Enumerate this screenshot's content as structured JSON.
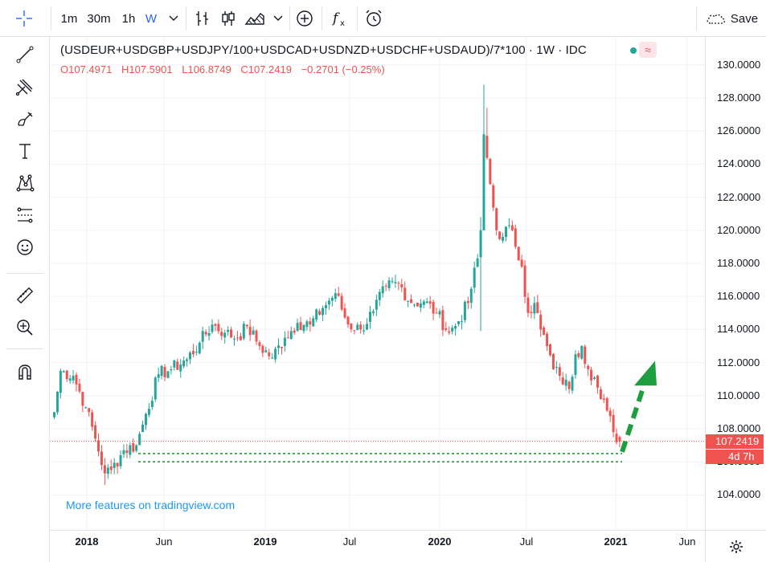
{
  "toolbar": {
    "intervals": [
      "1m",
      "30m",
      "1h",
      "W"
    ],
    "save_label": "Save"
  },
  "legend": {
    "title": "(USDEUR+USDGBP+USDJPY/100+USDCAD+USDNZD+USDCHF+USDAUD)/7*100 · 1W · IDC",
    "status_icon": "≈",
    "ohlc": {
      "o_label": "O",
      "o_value": "107.4971",
      "h_label": "H",
      "h_value": "107.5901",
      "l_label": "L",
      "l_value": "106.8749",
      "c_label": "C",
      "c_value": "107.2419",
      "change": "−0.2701 (−0.25%)"
    }
  },
  "watermark": "More features on tradingview.com",
  "price_axis": {
    "ticks": [
      "130.0000",
      "128.0000",
      "126.0000",
      "124.0000",
      "122.0000",
      "120.0000",
      "118.0000",
      "116.0000",
      "114.0000",
      "112.0000",
      "110.0000",
      "108.0000",
      "106.0000",
      "104.0000"
    ],
    "last_price": "107.2419",
    "countdown": "4d 7h"
  },
  "time_axis": [
    {
      "label": "2018",
      "bold": true
    },
    {
      "label": "Jun",
      "bold": false
    },
    {
      "label": "2019",
      "bold": true
    },
    {
      "label": "Jul",
      "bold": false
    },
    {
      "label": "2020",
      "bold": true
    },
    {
      "label": "Jul",
      "bold": false
    },
    {
      "label": "2021",
      "bold": true
    },
    {
      "label": "Jun",
      "bold": false
    }
  ],
  "chart_data": {
    "type": "candlestick",
    "symbol": "(USDEUR+USDGBP+USDJPY/100+USDCAD+USDNZD+USDCHF+USDAUD)/7*100",
    "interval": "1W",
    "source": "IDC",
    "ylim": [
      103,
      131
    ],
    "x_ticks": [
      "2018",
      "Jun",
      "2019",
      "Jul",
      "2020",
      "Jul",
      "2021",
      "Jun"
    ],
    "anchors": [
      {
        "w": 0,
        "v": 109.0
      },
      {
        "w": 2,
        "v": 111.5
      },
      {
        "w": 6,
        "v": 111.2
      },
      {
        "w": 10,
        "v": 109.3
      },
      {
        "w": 13,
        "v": 107.4
      },
      {
        "w": 16,
        "v": 105.3
      },
      {
        "w": 18,
        "v": 105.5
      },
      {
        "w": 22,
        "v": 106.7
      },
      {
        "w": 26,
        "v": 107.0
      },
      {
        "w": 29,
        "v": 108.9
      },
      {
        "w": 33,
        "v": 111.3
      },
      {
        "w": 37,
        "v": 111.6
      },
      {
        "w": 42,
        "v": 112.2
      },
      {
        "w": 46,
        "v": 113.2
      },
      {
        "w": 50,
        "v": 114.3
      },
      {
        "w": 54,
        "v": 113.8
      },
      {
        "w": 58,
        "v": 113.5
      },
      {
        "w": 61,
        "v": 114.2
      },
      {
        "w": 65,
        "v": 113.0
      },
      {
        "w": 69,
        "v": 112.3
      },
      {
        "w": 73,
        "v": 113.5
      },
      {
        "w": 77,
        "v": 114.4
      },
      {
        "w": 81,
        "v": 114.3
      },
      {
        "w": 85,
        "v": 115.3
      },
      {
        "w": 89,
        "v": 116.2
      },
      {
        "w": 93,
        "v": 114.3
      },
      {
        "w": 97,
        "v": 114.0
      },
      {
        "w": 101,
        "v": 115.1
      },
      {
        "w": 105,
        "v": 116.6
      },
      {
        "w": 109,
        "v": 116.8
      },
      {
        "w": 113,
        "v": 115.6
      },
      {
        "w": 117,
        "v": 115.7
      },
      {
        "w": 121,
        "v": 115.0
      },
      {
        "w": 125,
        "v": 113.8
      },
      {
        "w": 128,
        "v": 114.5
      },
      {
        "w": 131,
        "v": 115.6
      },
      {
        "w": 134,
        "v": 118.3
      },
      {
        "w": 135,
        "v": 120.0
      },
      {
        "w": 136,
        "v": 125.8
      },
      {
        "w": 138,
        "v": 122.8
      },
      {
        "w": 140,
        "v": 120.0
      },
      {
        "w": 142,
        "v": 119.6
      },
      {
        "w": 144,
        "v": 120.3
      },
      {
        "w": 146,
        "v": 119.0
      },
      {
        "w": 148,
        "v": 117.8
      },
      {
        "w": 150,
        "v": 115.0
      },
      {
        "w": 152,
        "v": 115.6
      },
      {
        "w": 154,
        "v": 114.0
      },
      {
        "w": 156,
        "v": 113.0
      },
      {
        "w": 158,
        "v": 111.6
      },
      {
        "w": 160,
        "v": 111.2
      },
      {
        "w": 163,
        "v": 110.4
      },
      {
        "w": 165,
        "v": 112.5
      },
      {
        "w": 167,
        "v": 113.0
      },
      {
        "w": 169,
        "v": 111.6
      },
      {
        "w": 171,
        "v": 111.1
      },
      {
        "w": 173,
        "v": 109.8
      },
      {
        "w": 175,
        "v": 109.1
      },
      {
        "w": 177,
        "v": 107.8
      },
      {
        "w": 179,
        "v": 107.2
      }
    ],
    "last": {
      "open": 107.4971,
      "high": 107.5901,
      "low": 106.8749,
      "close": 107.2419,
      "change": -0.2701,
      "change_pct": -0.25
    },
    "support_levels": [
      106.5,
      106.0
    ],
    "annotation": "dashed green upward arrow projecting rebound toward ~111.5"
  },
  "colors": {
    "up": "#26a69a",
    "down": "#ef5350",
    "accent": "#2962ff",
    "arrow": "#1e9e3e",
    "watermark": "#2196f3"
  }
}
